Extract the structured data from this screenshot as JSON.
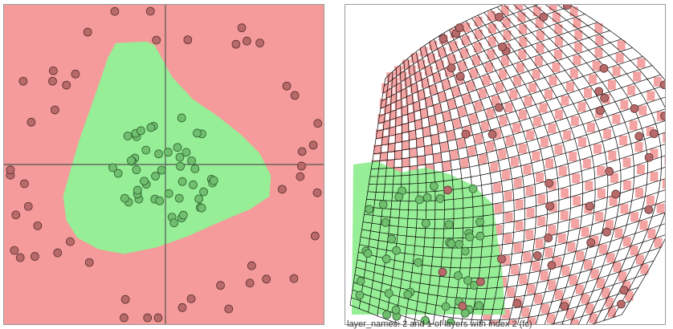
{
  "left_panel": {
    "title": "",
    "background_region_color": "#f59b9b",
    "inner_region_color": "#96ee96",
    "axis_color": "#555555",
    "positive_point_color": "#6fbf6f",
    "negative_point_color": "#b86a6a",
    "point_count_positive": 50,
    "point_count_negative": 50
  },
  "right_panel": {
    "title": "",
    "grid_line_color": "#000000",
    "pink_cell_color": "#f4a3a3",
    "green_region_color": "#96ee96",
    "caption": "layer_names: 2 and 1 of layers with index 2 (fc)"
  },
  "chart_data": [
    {
      "type": "scatter",
      "title": "",
      "xlabel": "",
      "ylabel": "",
      "grid": false,
      "axis_lines": "cross at origin",
      "series": [
        {
          "name": "",
          "values": []
        },
        {
          "name": "",
          "values": []
        }
      ]
    },
    {
      "type": "scatter",
      "title": "",
      "xlabel": "",
      "ylabel": "",
      "grid": true,
      "series": [
        {
          "name": "",
          "values": []
        },
        {
          "name": "",
          "values": []
        }
      ]
    }
  ]
}
